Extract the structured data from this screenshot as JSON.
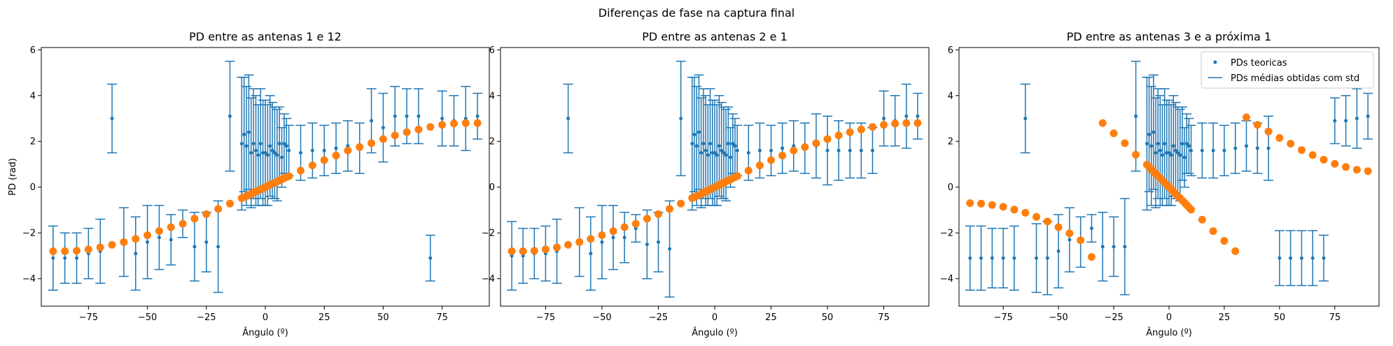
{
  "figure": {
    "suptitle": "Diferenças de fase na captura final"
  },
  "legend": {
    "points_label": "PDs teoricas",
    "errorbar_label": "PDs médias obtidas com std"
  },
  "colors": {
    "errorbar": "#1f77b4",
    "points": "#ff7f0e",
    "axes": "#000000"
  },
  "chart_data": [
    {
      "type": "scatter",
      "title": "PD entre as antenas 1 e 12",
      "xlabel": "Ângulo (º)",
      "ylabel": "PD (rad)",
      "xlim": [
        -95,
        95
      ],
      "ylim": [
        -5.2,
        6.1
      ],
      "xticks": [
        -75,
        -50,
        -25,
        0,
        25,
        50,
        75
      ],
      "yticks": [
        -4,
        -2,
        0,
        2,
        4,
        6
      ],
      "grid": false,
      "legend": false,
      "series": [
        {
          "name": "PDs médias obtidas com std",
          "kind": "errorbar",
          "x": [
            -90,
            -85,
            -80,
            -75,
            -70,
            -65,
            -60,
            -55,
            -50,
            -45,
            -40,
            -35,
            -30,
            -25,
            -20,
            -15,
            -10,
            -9,
            -8,
            -7,
            -6,
            -5,
            -4,
            -3,
            -2,
            -1,
            0,
            1,
            2,
            3,
            4,
            5,
            6,
            7,
            8,
            9,
            10,
            15,
            20,
            25,
            30,
            35,
            40,
            45,
            50,
            55,
            60,
            65,
            70,
            75,
            80,
            85,
            90
          ],
          "y": [
            -3.1,
            -3.1,
            -3.1,
            -2.9,
            -2.8,
            3.0,
            -2.4,
            -2.9,
            -2.4,
            -2.2,
            -2.3,
            -1.6,
            -2.6,
            -2.4,
            -2.6,
            3.1,
            1.9,
            2.3,
            1.8,
            2.4,
            1.5,
            1.9,
            1.6,
            1.4,
            1.9,
            1.5,
            1.5,
            1.4,
            1.8,
            1.6,
            1.5,
            1.4,
            1.9,
            1.3,
            1.9,
            1.8,
            1.6,
            1.5,
            1.6,
            1.6,
            1.7,
            1.8,
            1.7,
            2.9,
            2.6,
            3.1,
            3.1,
            3.1,
            -3.1,
            3.0,
            2.9,
            3.0,
            3.1
          ],
          "err": [
            1.4,
            1.1,
            1.1,
            1.1,
            1.4,
            1.5,
            1.5,
            1.6,
            1.6,
            1.4,
            1.1,
            0.6,
            1.5,
            1.3,
            2.0,
            2.4,
            2.9,
            2.5,
            2.6,
            2.5,
            2.4,
            2.4,
            2.4,
            2.2,
            2.4,
            2.3,
            2.3,
            2.2,
            2.2,
            2.1,
            2.0,
            2.0,
            1.6,
            1.3,
            1.3,
            1.2,
            1.1,
            1.2,
            1.2,
            1.1,
            1.1,
            1.1,
            1.1,
            1.4,
            1.5,
            1.3,
            1.2,
            1.2,
            1.0,
            1.2,
            1.1,
            1.4,
            1.0
          ]
        },
        {
          "name": "PDs teoricas",
          "kind": "points",
          "x": [
            -90,
            -85,
            -80,
            -75,
            -70,
            -65,
            -60,
            -55,
            -50,
            -45,
            -40,
            -35,
            -30,
            -25,
            -20,
            -15,
            -10,
            -9,
            -8,
            -7,
            -6,
            -5,
            -4,
            -3,
            -2,
            -1,
            0,
            1,
            2,
            3,
            4,
            5,
            6,
            7,
            8,
            9,
            10,
            15,
            20,
            25,
            30,
            35,
            40,
            45,
            50,
            55,
            60,
            65,
            70,
            75,
            80,
            85,
            90
          ],
          "y": [
            -2.8,
            -2.8,
            -2.78,
            -2.72,
            -2.63,
            -2.52,
            -2.4,
            -2.26,
            -2.1,
            -1.92,
            -1.75,
            -1.6,
            -1.38,
            -1.18,
            -0.95,
            -0.72,
            -0.48,
            -0.44,
            -0.39,
            -0.34,
            -0.29,
            -0.24,
            -0.19,
            -0.15,
            -0.1,
            -0.05,
            0.0,
            0.05,
            0.1,
            0.15,
            0.19,
            0.24,
            0.29,
            0.34,
            0.39,
            0.44,
            0.48,
            0.72,
            0.95,
            1.18,
            1.38,
            1.6,
            1.75,
            1.92,
            2.1,
            2.26,
            2.4,
            2.52,
            2.63,
            2.72,
            2.78,
            2.8,
            2.8
          ]
        }
      ]
    },
    {
      "type": "scatter",
      "title": "PD entre as antenas 2 e 1",
      "xlabel": "Ângulo (º)",
      "ylabel": "",
      "xlim": [
        -95,
        95
      ],
      "ylim": [
        -5.2,
        6.1
      ],
      "xticks": [
        -75,
        -50,
        -25,
        0,
        25,
        50,
        75
      ],
      "yticks": [
        -4,
        -2,
        0,
        2,
        4,
        6
      ],
      "grid": false,
      "legend": false,
      "series": [
        {
          "name": "PDs médias obtidas com std",
          "kind": "errorbar",
          "x": [
            -90,
            -85,
            -80,
            -75,
            -70,
            -65,
            -60,
            -55,
            -50,
            -45,
            -40,
            -35,
            -30,
            -25,
            -20,
            -15,
            -10,
            -9,
            -8,
            -7,
            -6,
            -5,
            -4,
            -3,
            -2,
            -1,
            0,
            1,
            2,
            3,
            4,
            5,
            6,
            7,
            8,
            9,
            10,
            15,
            20,
            25,
            30,
            35,
            40,
            45,
            50,
            55,
            60,
            65,
            70,
            75,
            80,
            85,
            90
          ],
          "y": [
            -3.0,
            -3.0,
            -2.9,
            -2.9,
            -2.8,
            3.0,
            -2.4,
            -2.9,
            -2.4,
            -2.2,
            -2.2,
            -1.8,
            -2.5,
            -2.4,
            -2.7,
            3.0,
            1.9,
            2.3,
            1.8,
            2.4,
            1.5,
            1.9,
            1.6,
            1.4,
            1.9,
            1.5,
            1.5,
            1.4,
            1.8,
            1.6,
            1.5,
            1.4,
            1.9,
            1.3,
            1.9,
            1.8,
            1.6,
            1.5,
            1.6,
            1.6,
            1.7,
            1.8,
            1.7,
            1.8,
            1.6,
            1.6,
            1.6,
            1.6,
            1.6,
            3.0,
            2.9,
            3.1,
            3.1
          ],
          "err": [
            1.5,
            1.2,
            1.1,
            1.2,
            1.4,
            1.5,
            1.5,
            1.6,
            1.6,
            1.4,
            1.1,
            0.6,
            1.5,
            1.3,
            2.1,
            2.5,
            2.9,
            2.5,
            2.6,
            2.5,
            2.4,
            2.4,
            2.4,
            2.2,
            2.4,
            2.3,
            2.3,
            2.2,
            2.2,
            2.1,
            2.0,
            2.0,
            1.6,
            1.3,
            1.3,
            1.2,
            1.1,
            1.2,
            1.2,
            1.1,
            1.1,
            1.1,
            1.1,
            1.4,
            1.5,
            1.3,
            1.2,
            1.2,
            1.0,
            1.2,
            1.1,
            1.4,
            1.0
          ]
        },
        {
          "name": "PDs teoricas",
          "kind": "points",
          "x": [
            -90,
            -85,
            -80,
            -75,
            -70,
            -65,
            -60,
            -55,
            -50,
            -45,
            -40,
            -35,
            -30,
            -25,
            -20,
            -15,
            -10,
            -9,
            -8,
            -7,
            -6,
            -5,
            -4,
            -3,
            -2,
            -1,
            0,
            1,
            2,
            3,
            4,
            5,
            6,
            7,
            8,
            9,
            10,
            15,
            20,
            25,
            30,
            35,
            40,
            45,
            50,
            55,
            60,
            65,
            70,
            75,
            80,
            85,
            90
          ],
          "y": [
            -2.8,
            -2.8,
            -2.78,
            -2.72,
            -2.63,
            -2.52,
            -2.4,
            -2.26,
            -2.1,
            -1.92,
            -1.75,
            -1.6,
            -1.38,
            -1.18,
            -0.95,
            -0.72,
            -0.48,
            -0.44,
            -0.39,
            -0.34,
            -0.29,
            -0.24,
            -0.19,
            -0.15,
            -0.1,
            -0.05,
            0.0,
            0.05,
            0.1,
            0.15,
            0.19,
            0.24,
            0.29,
            0.34,
            0.39,
            0.44,
            0.48,
            0.72,
            0.95,
            1.18,
            1.38,
            1.6,
            1.75,
            1.92,
            2.1,
            2.26,
            2.4,
            2.52,
            2.63,
            2.72,
            2.78,
            2.8,
            2.8
          ]
        }
      ]
    },
    {
      "type": "scatter",
      "title": "PD entre as antenas 3 e a próxima 1",
      "xlabel": "Ângulo (º)",
      "ylabel": "",
      "xlim": [
        -95,
        95
      ],
      "ylim": [
        -5.2,
        6.1
      ],
      "xticks": [
        -75,
        -50,
        -25,
        0,
        25,
        50,
        75
      ],
      "yticks": [
        -4,
        -2,
        0,
        2,
        4,
        6
      ],
      "grid": false,
      "legend": "top-right",
      "series": [
        {
          "name": "PDs médias obtidas com std",
          "kind": "errorbar",
          "x": [
            -90,
            -85,
            -80,
            -75,
            -70,
            -65,
            -60,
            -55,
            -50,
            -45,
            -40,
            -35,
            -30,
            -25,
            -20,
            -15,
            -10,
            -9,
            -8,
            -7,
            -6,
            -5,
            -4,
            -3,
            -2,
            -1,
            0,
            1,
            2,
            3,
            4,
            5,
            6,
            7,
            8,
            9,
            10,
            15,
            20,
            25,
            30,
            35,
            40,
            45,
            50,
            55,
            60,
            65,
            70,
            75,
            80,
            85,
            90
          ],
          "y": [
            -3.1,
            -3.1,
            -3.1,
            -3.1,
            -3.1,
            3.0,
            -3.1,
            -3.1,
            -2.8,
            -2.3,
            -2.4,
            -1.8,
            -2.6,
            -2.6,
            -2.6,
            3.1,
            1.9,
            2.3,
            1.8,
            2.4,
            1.5,
            1.9,
            1.6,
            1.4,
            1.9,
            1.5,
            1.5,
            1.4,
            1.8,
            1.6,
            1.5,
            1.4,
            1.9,
            1.3,
            1.9,
            1.8,
            1.6,
            1.6,
            1.6,
            1.6,
            1.7,
            1.8,
            1.7,
            1.7,
            -3.1,
            -3.1,
            -3.1,
            -3.1,
            -3.1,
            2.9,
            2.9,
            3.0,
            3.1
          ],
          "err": [
            1.4,
            1.4,
            1.3,
            1.3,
            1.4,
            1.5,
            1.5,
            1.6,
            1.6,
            1.4,
            1.1,
            0.6,
            1.5,
            1.3,
            2.1,
            2.4,
            2.9,
            2.5,
            2.6,
            2.5,
            2.4,
            2.4,
            2.4,
            2.2,
            2.4,
            2.3,
            2.3,
            2.2,
            2.2,
            2.1,
            2.0,
            2.0,
            1.6,
            1.3,
            1.3,
            1.2,
            1.1,
            1.2,
            1.2,
            1.1,
            1.1,
            1.1,
            1.1,
            1.4,
            1.2,
            1.2,
            1.2,
            1.2,
            1.0,
            1.0,
            1.1,
            1.3,
            1.0
          ]
        },
        {
          "name": "PDs teoricas",
          "kind": "points",
          "x": [
            -90,
            -85,
            -80,
            -75,
            -70,
            -65,
            -60,
            -55,
            -50,
            -45,
            -40,
            -35,
            -30,
            -25,
            -20,
            -15,
            -10,
            -9,
            -8,
            -7,
            -6,
            -5,
            -4,
            -3,
            -2,
            -1,
            0,
            1,
            2,
            3,
            4,
            5,
            6,
            7,
            8,
            9,
            10,
            15,
            20,
            25,
            30,
            35,
            40,
            45,
            50,
            55,
            60,
            65,
            70,
            75,
            80,
            85,
            90
          ],
          "y": [
            -0.7,
            -0.72,
            -0.78,
            -0.86,
            -0.98,
            -1.12,
            -1.3,
            -1.5,
            -1.75,
            -2.02,
            -2.32,
            -3.05,
            2.8,
            2.35,
            1.92,
            1.42,
            0.98,
            0.88,
            0.78,
            0.68,
            0.58,
            0.48,
            0.4,
            0.3,
            0.2,
            0.1,
            0.0,
            -0.1,
            -0.2,
            -0.3,
            -0.4,
            -0.48,
            -0.58,
            -0.68,
            -0.78,
            -0.88,
            -0.98,
            -1.42,
            -1.92,
            -2.35,
            -2.8,
            3.05,
            2.72,
            2.43,
            2.15,
            1.9,
            1.62,
            1.4,
            1.2,
            1.02,
            0.88,
            0.76,
            0.7
          ]
        }
      ]
    }
  ]
}
